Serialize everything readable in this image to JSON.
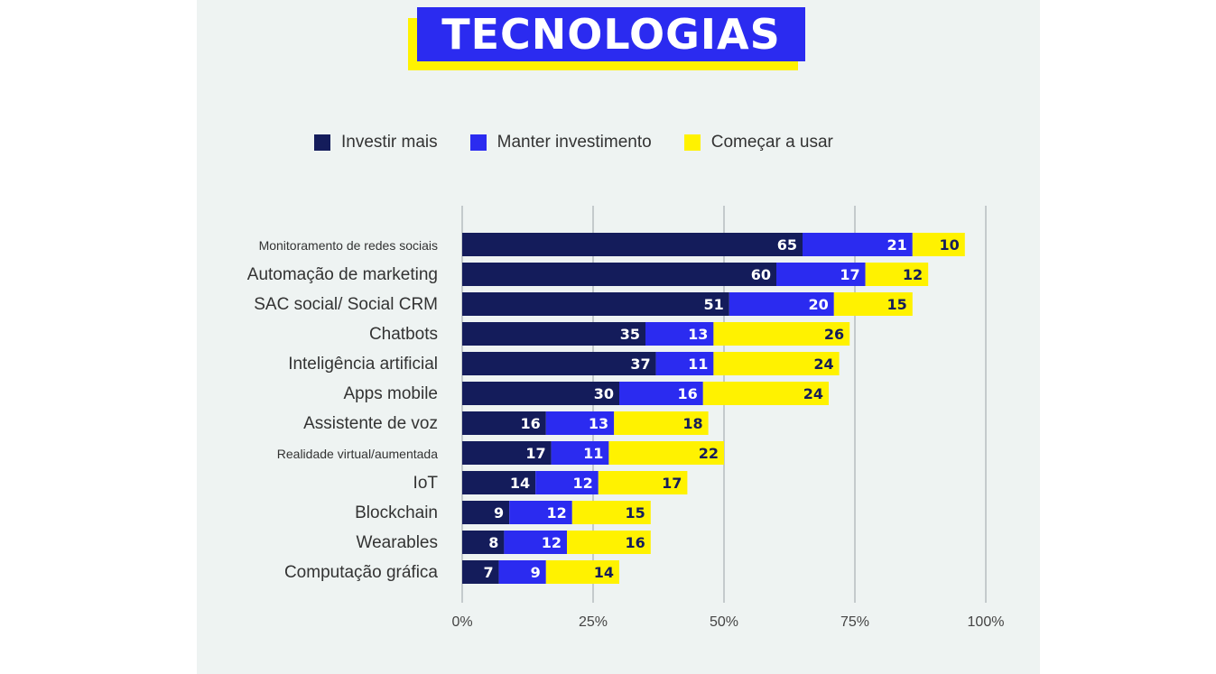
{
  "title": "TECNOLOGIAS",
  "colors": {
    "investir": "#141c5b",
    "manter": "#2b2bf0",
    "comecar": "#fff200"
  },
  "legend": [
    {
      "label": "Investir mais",
      "color": "#141c5b"
    },
    {
      "label": "Manter investimento",
      "color": "#2b2bf0"
    },
    {
      "label": "Começar a usar",
      "color": "#fff200"
    }
  ],
  "chart_data": {
    "type": "bar",
    "orientation": "horizontal",
    "stacked": true,
    "title": "TECNOLOGIAS",
    "categories": [
      "Monitoramento de redes sociais",
      "Automação de marketing",
      "SAC social/ Social CRM",
      "Chatbots",
      "Inteligência artificial",
      "Apps mobile",
      "Assistente de voz",
      "Realidade virtual/aumentada",
      "IoT",
      "Blockchain",
      "Wearables",
      "Computação gráfica"
    ],
    "series": [
      {
        "name": "Investir mais",
        "values": [
          65,
          60,
          51,
          35,
          37,
          30,
          16,
          17,
          14,
          9,
          8,
          7
        ]
      },
      {
        "name": "Manter investimento",
        "values": [
          21,
          17,
          20,
          13,
          11,
          16,
          13,
          11,
          12,
          12,
          12,
          9
        ]
      },
      {
        "name": "Começar a usar",
        "values": [
          10,
          12,
          15,
          26,
          24,
          24,
          18,
          22,
          17,
          15,
          16,
          14
        ]
      }
    ],
    "xlim": [
      0,
      100
    ],
    "xticks": [
      "0%",
      "25%",
      "50%",
      "75%",
      "100%"
    ],
    "grid": true,
    "legend_position": "top"
  }
}
